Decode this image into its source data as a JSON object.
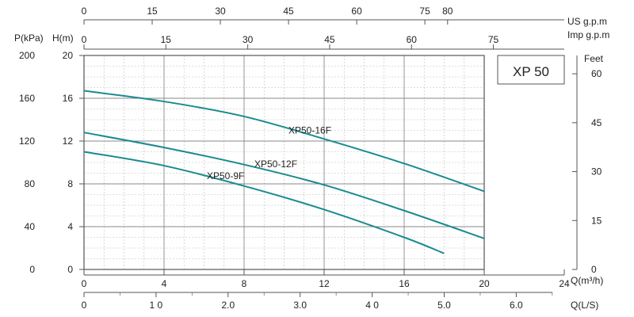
{
  "chart_data": {
    "type": "line",
    "title": "XP 50",
    "x_axis": {
      "label": "Q(m³/h)",
      "range": [
        0,
        24
      ],
      "ticks": [
        0,
        4,
        8,
        12,
        16,
        20,
        24
      ]
    },
    "y_axis_left": {
      "label": "H(m)",
      "range": [
        0,
        20
      ],
      "ticks": [
        0,
        4,
        8,
        12,
        16,
        20
      ]
    },
    "y_axis_pressure": {
      "label": "P(kPa)",
      "range": [
        0,
        200
      ],
      "ticks": [
        0,
        40,
        80,
        120,
        160,
        200
      ]
    },
    "y_axis_right": {
      "label": "Feet",
      "ticks": [
        0,
        15,
        30,
        45,
        60
      ]
    },
    "x_axis_us_gpm": {
      "label": "US  g.p.m",
      "ticks": [
        0,
        15,
        30,
        45,
        60,
        75,
        80
      ]
    },
    "x_axis_imp_gpm": {
      "label": "Imp  g.p.m",
      "ticks": [
        0,
        15,
        30,
        45,
        60,
        75
      ]
    },
    "x_axis_ls": {
      "label": "Q(L/S)",
      "range": [
        0,
        6.67
      ],
      "tick_values": [
        0,
        1,
        2,
        3,
        4,
        5,
        6
      ],
      "tick_labels": [
        "0",
        "1 0",
        "2.0",
        "3.0",
        "4 0",
        "5.0",
        "6.0"
      ]
    },
    "grid": true,
    "line_color": "#1a8b8f",
    "series": [
      {
        "name": "XP50-16F",
        "points": [
          [
            0,
            16.7
          ],
          [
            4,
            15.7
          ],
          [
            8,
            14.3
          ],
          [
            12,
            12.2
          ],
          [
            16,
            9.9
          ],
          [
            20,
            7.3
          ]
        ]
      },
      {
        "name": "XP50-12F",
        "points": [
          [
            0,
            12.8
          ],
          [
            4,
            11.4
          ],
          [
            8,
            9.8
          ],
          [
            12,
            7.9
          ],
          [
            16,
            5.5
          ],
          [
            20,
            2.9
          ]
        ]
      },
      {
        "name": "XP50-9F",
        "points": [
          [
            0,
            11.0
          ],
          [
            4,
            9.7
          ],
          [
            8,
            7.8
          ],
          [
            12,
            5.6
          ],
          [
            16,
            3.0
          ],
          [
            18,
            1.5
          ]
        ]
      }
    ]
  }
}
